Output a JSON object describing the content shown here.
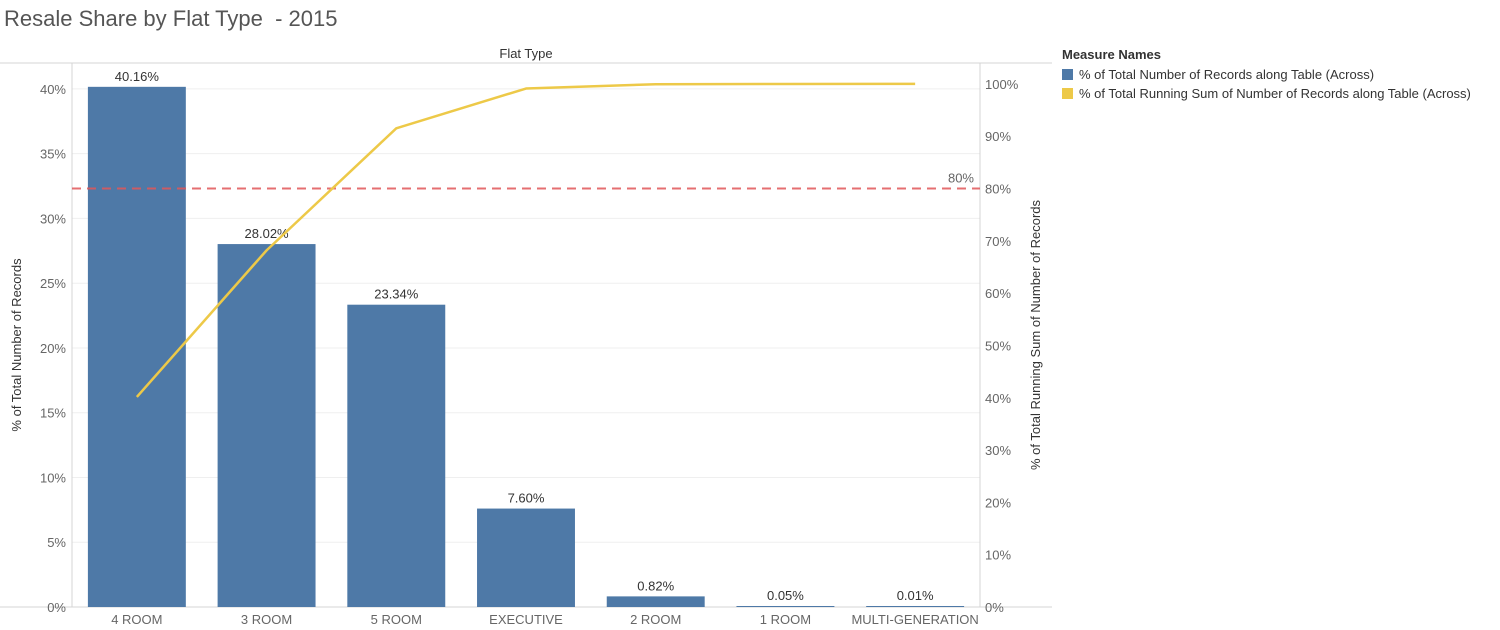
{
  "title": "Resale Share by Flat Type  - 2015",
  "chart_data": {
    "type": "bar",
    "header": "Flat Type",
    "categories": [
      "4 ROOM",
      "3 ROOM",
      "5 ROOM",
      "EXECUTIVE",
      "2 ROOM",
      "1 ROOM",
      "MULTI-GENERATION"
    ],
    "series": [
      {
        "name": "% of Total Number of Records along Table (Across)",
        "type": "bar",
        "axis": "left",
        "color": "#4e79a7",
        "values": [
          40.16,
          28.02,
          23.34,
          7.6,
          0.82,
          0.05,
          0.01
        ],
        "labels": [
          "40.16%",
          "28.02%",
          "23.34%",
          "7.60%",
          "0.82%",
          "0.05%",
          "0.01%"
        ]
      },
      {
        "name": "% of Total Running Sum of Number of Records along Table (Across)",
        "type": "line",
        "axis": "right",
        "color": "#edc948",
        "values": [
          40.16,
          68.18,
          91.52,
          99.12,
          99.94,
          99.99,
          100.0
        ]
      }
    ],
    "ylabel": "% of Total Number of Records",
    "ylim": [
      0,
      42
    ],
    "yticks": [
      0,
      5,
      10,
      15,
      20,
      25,
      30,
      35,
      40
    ],
    "ytick_labels": [
      "0%",
      "5%",
      "10%",
      "15%",
      "20%",
      "25%",
      "30%",
      "35%",
      "40%"
    ],
    "y2label": "% of Total Running Sum of Number of Records",
    "y2lim": [
      0,
      104
    ],
    "y2ticks": [
      0,
      10,
      20,
      30,
      40,
      50,
      60,
      70,
      80,
      90,
      100
    ],
    "y2tick_labels": [
      "0%",
      "10%",
      "20%",
      "30%",
      "40%",
      "50%",
      "60%",
      "70%",
      "80%",
      "90%",
      "100%"
    ],
    "reference_line": {
      "value": 80,
      "axis": "right",
      "label": "80%",
      "color": "#e15759",
      "style": "dashed"
    },
    "grid": true,
    "legend": {
      "title": "Measure Names",
      "position": "right",
      "items": [
        {
          "label": "% of Total Number of Records along Table (Across)",
          "color": "#4e79a7"
        },
        {
          "label": "% of Total Running Sum of Number of Records along Table (Across)",
          "color": "#edc948"
        }
      ]
    }
  }
}
